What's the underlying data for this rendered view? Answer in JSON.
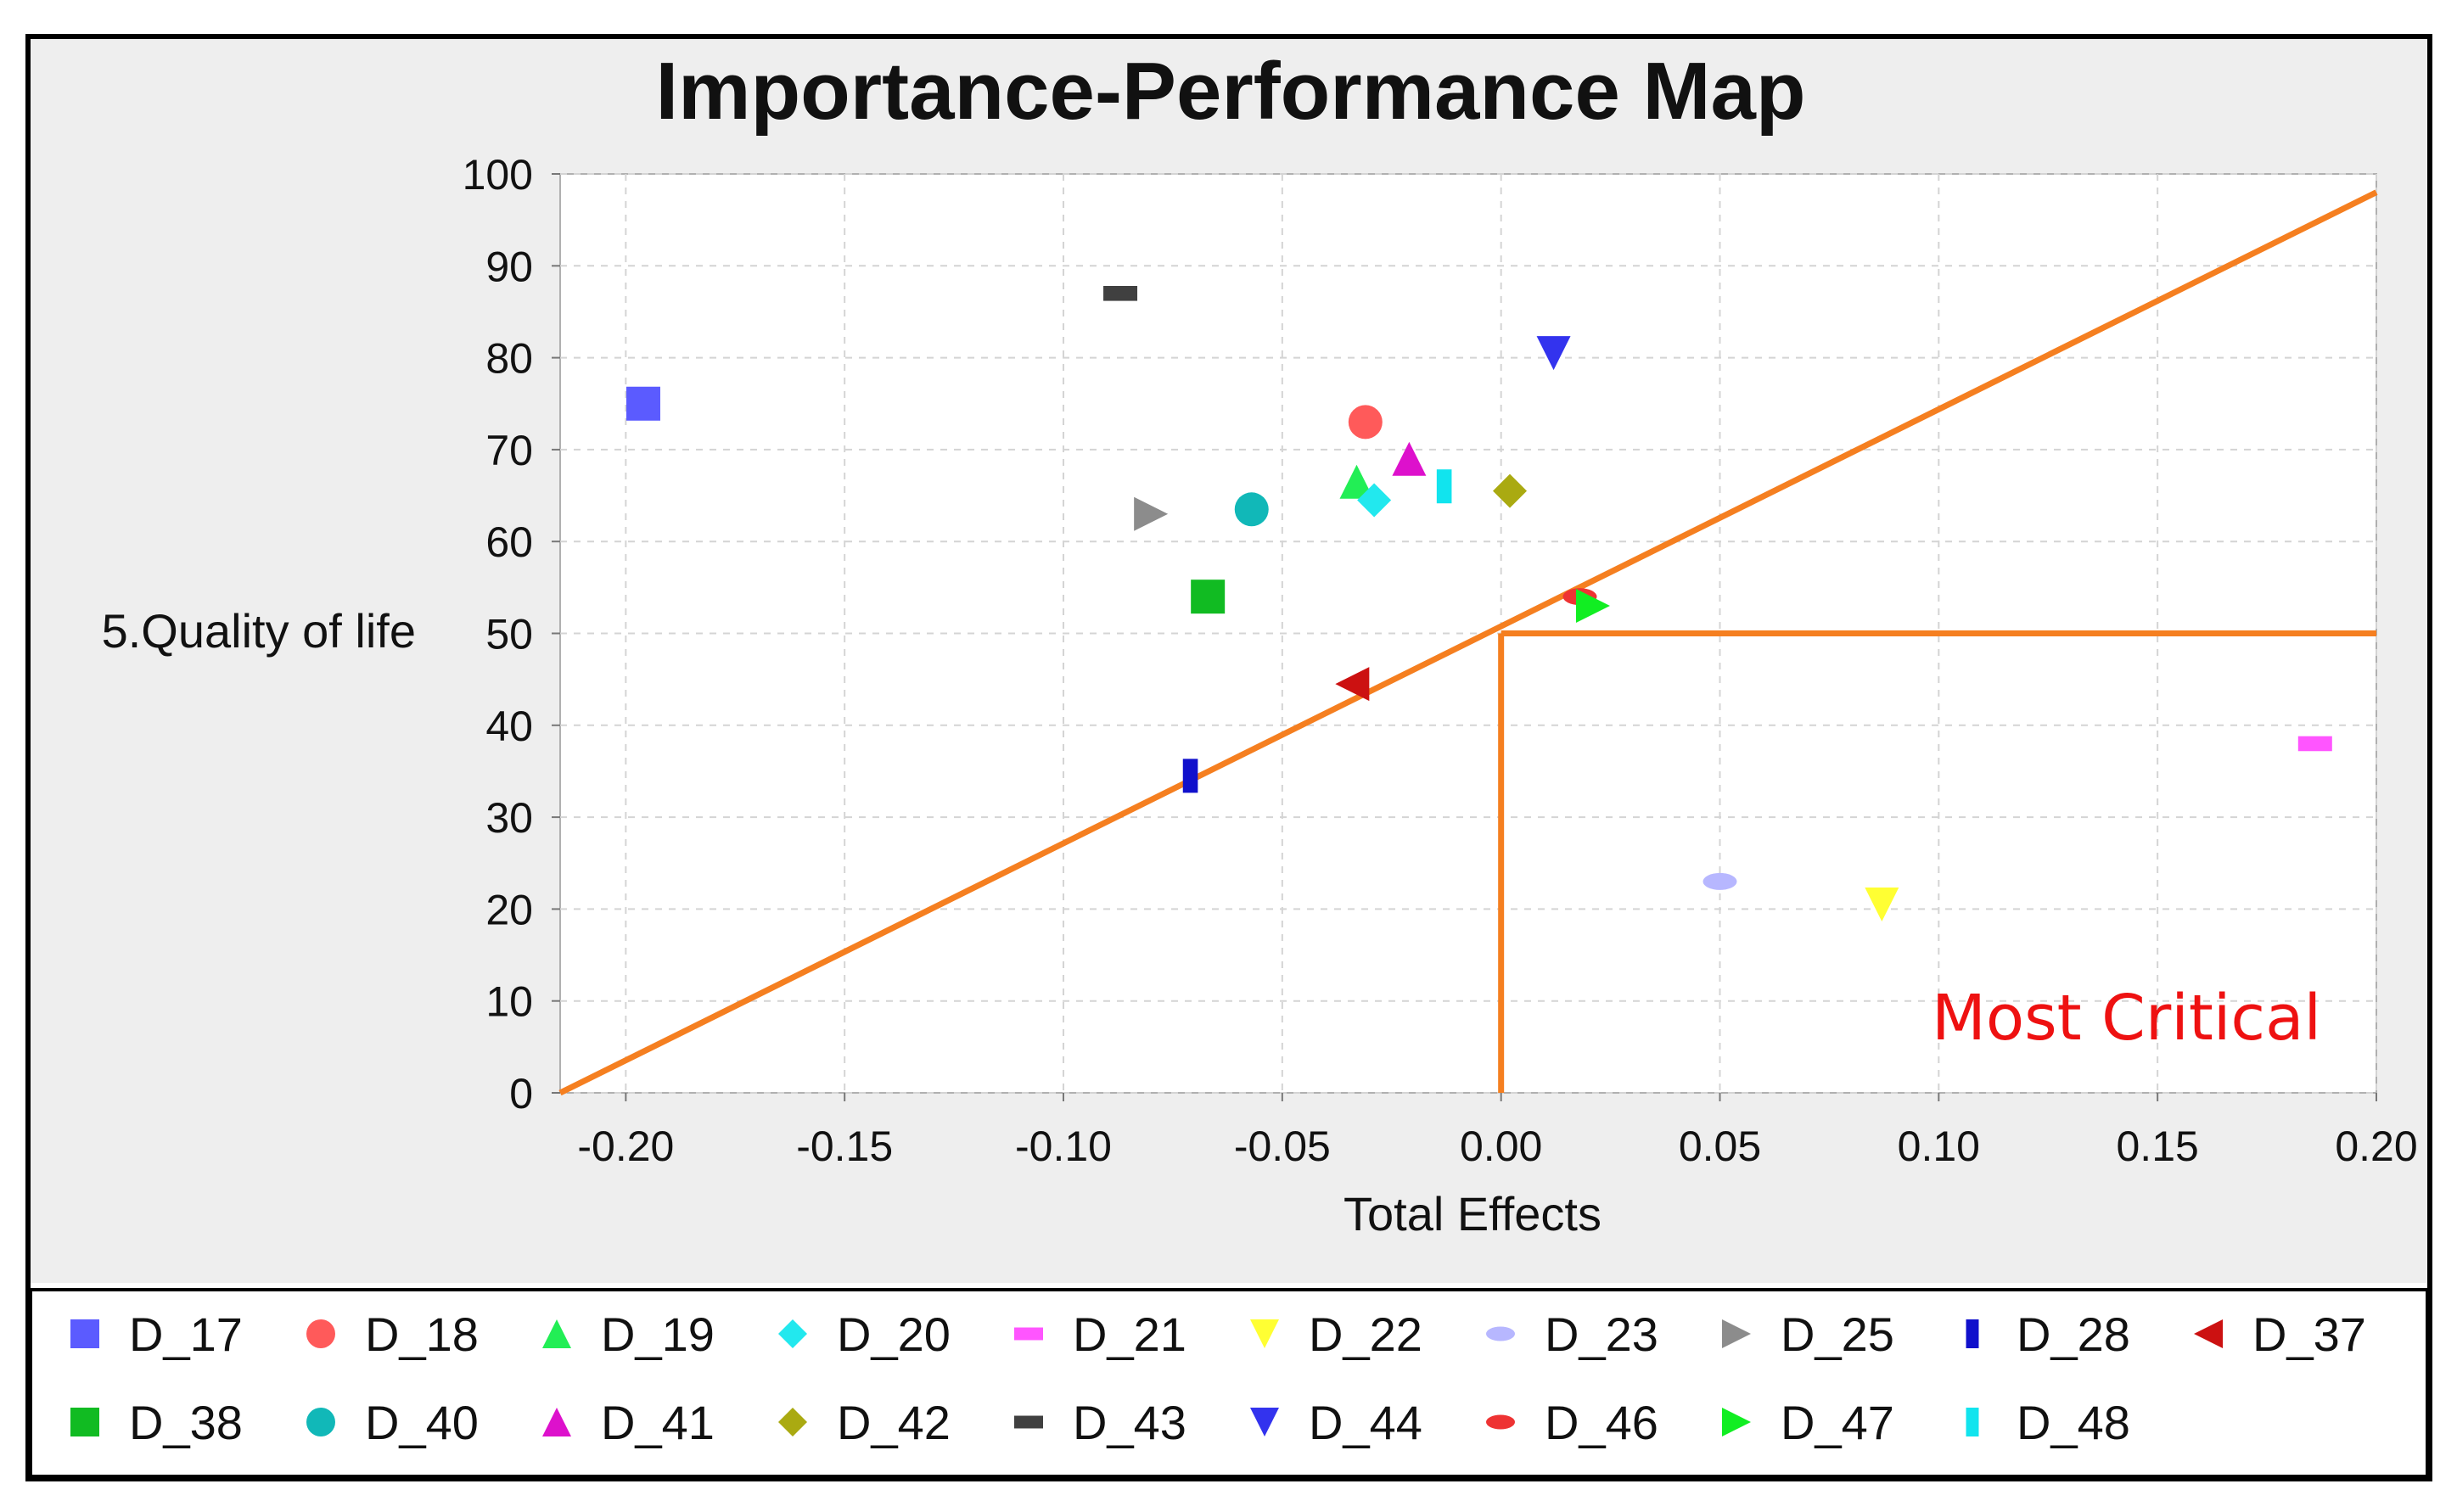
{
  "chart_data": {
    "type": "scatter",
    "title": "Importance-Performance Map",
    "xlabel": "Total Effects",
    "ylabel": "5.Quality of life",
    "xlim": [
      -0.215,
      0.2
    ],
    "ylim": [
      0,
      100
    ],
    "xticks": [
      -0.2,
      -0.15,
      -0.1,
      -0.05,
      0.0,
      0.05,
      0.1,
      0.15,
      0.2
    ],
    "xtick_labels": [
      "-0.20",
      "-0.15",
      "-0.10",
      "-0.05",
      "0.00",
      "0.05",
      "0.10",
      "0.15",
      "0.20"
    ],
    "yticks": [
      0,
      10,
      20,
      30,
      40,
      50,
      60,
      70,
      80,
      90,
      100
    ],
    "ytick_labels": [
      "0",
      "10",
      "20",
      "30",
      "40",
      "50",
      "60",
      "70",
      "80",
      "90",
      "100"
    ],
    "grid": true,
    "legend_position": "bottom",
    "annotation": {
      "text": "Most Critical",
      "color": "#ee1111"
    },
    "reference_lines": {
      "color": "#f57f20",
      "diagonal": [
        [
          -0.215,
          0
        ],
        [
          0.2,
          98
        ]
      ],
      "critical_x": 0.0,
      "critical_y": 50
    },
    "series": [
      {
        "name": "D_17",
        "x": -0.196,
        "y": 75,
        "marker": "square",
        "color": "#5b5bff"
      },
      {
        "name": "D_18",
        "x": -0.031,
        "y": 73,
        "marker": "circle",
        "color": "#ff5a5a"
      },
      {
        "name": "D_19",
        "x": -0.033,
        "y": 66.5,
        "marker": "triangle-up",
        "color": "#22ee55"
      },
      {
        "name": "D_20",
        "x": -0.029,
        "y": 64.5,
        "marker": "diamond",
        "color": "#22e8ee"
      },
      {
        "name": "D_21",
        "x": 0.186,
        "y": 38,
        "marker": "dash",
        "color": "#ff55ff"
      },
      {
        "name": "D_22",
        "x": 0.087,
        "y": 20.5,
        "marker": "triangle-down",
        "color": "#ffff33"
      },
      {
        "name": "D_23",
        "x": 0.05,
        "y": 23,
        "marker": "ellipse",
        "color": "#b7b7ff"
      },
      {
        "name": "D_25",
        "x": -0.08,
        "y": 63,
        "marker": "triangle-right",
        "color": "#8c8c8c"
      },
      {
        "name": "D_28",
        "x": -0.071,
        "y": 34.5,
        "marker": "bar",
        "color": "#1010cc"
      },
      {
        "name": "D_37",
        "x": -0.034,
        "y": 44.5,
        "marker": "triangle-left",
        "color": "#cc1111"
      },
      {
        "name": "D_38",
        "x": -0.067,
        "y": 54,
        "marker": "square",
        "color": "#11bb22"
      },
      {
        "name": "D_40",
        "x": -0.057,
        "y": 63.5,
        "marker": "circle",
        "color": "#11b8b8"
      },
      {
        "name": "D_41",
        "x": -0.021,
        "y": 69,
        "marker": "triangle-up",
        "color": "#dd11cc"
      },
      {
        "name": "D_42",
        "x": 0.002,
        "y": 65.5,
        "marker": "diamond",
        "color": "#aaaa11"
      },
      {
        "name": "D_43",
        "x": -0.087,
        "y": 87,
        "marker": "dash",
        "color": "#404040"
      },
      {
        "name": "D_44",
        "x": 0.012,
        "y": 80.5,
        "marker": "triangle-down",
        "color": "#3333ee"
      },
      {
        "name": "D_46",
        "x": 0.018,
        "y": 54,
        "marker": "ellipse",
        "color": "#ee3333"
      },
      {
        "name": "D_47",
        "x": 0.021,
        "y": 53,
        "marker": "triangle-right",
        "color": "#11ee22"
      },
      {
        "name": "D_48",
        "x": -0.013,
        "y": 66,
        "marker": "bar",
        "color": "#11e4ee"
      }
    ]
  }
}
